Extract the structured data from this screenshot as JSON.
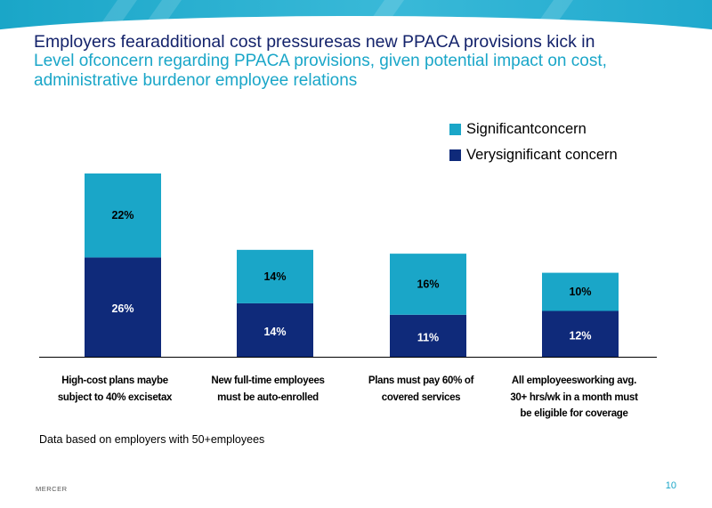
{
  "slide": {
    "title": "Employers fearadditional cost pressuresas new PPACA provisions kick in",
    "subtitle": "Level ofconcern regarding PPACA provisions, given potential impact on cost, administrative burdenor employee relations",
    "footnote": "Data based on employers with 50+employees",
    "brand": "MERCER",
    "page_number": "10"
  },
  "colors": {
    "very_significant": "#0f2a7a",
    "significant": "#1aa6c8",
    "title": "#14236b"
  },
  "chart_data": {
    "type": "bar",
    "stacked": true,
    "categories": [
      "High-cost plans maybe subject to 40% excisetax",
      "New full-time employees must be auto-enrolled",
      "Plans must pay 60% of covered services",
      "All employeesworking avg. 30+ hrs/wk in a month must be eligible for coverage"
    ],
    "series": [
      {
        "name": "Verysignificant concern",
        "values": [
          26,
          14,
          11,
          12
        ],
        "labels": [
          "26%",
          "14%",
          "11%",
          "12%"
        ]
      },
      {
        "name": "Significantconcern",
        "values": [
          22,
          14,
          16,
          10
        ],
        "labels": [
          "22%",
          "14%",
          "16%",
          "10%"
        ]
      }
    ],
    "legend": [
      "Significantconcern",
      "Verysignificant concern"
    ],
    "legend_position": "top-right",
    "ylim": [
      0,
      48
    ],
    "grid": false
  }
}
